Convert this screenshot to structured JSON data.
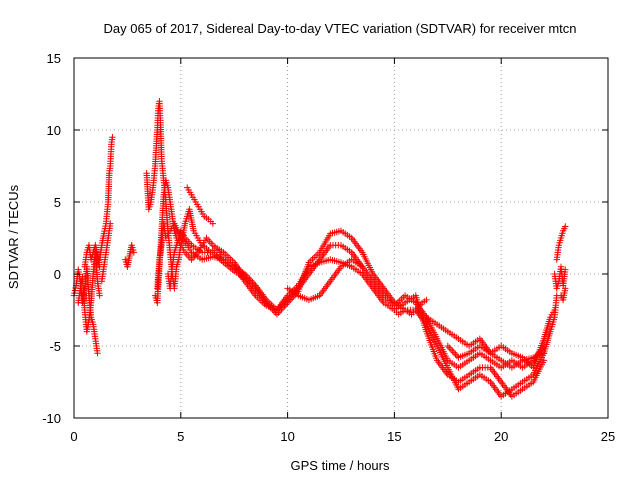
{
  "chart_data": {
    "type": "scatter",
    "title": "Day 065 of 2017, Sidereal Day-to-day VTEC variation (SDTVAR) for receiver mtcn",
    "xlabel": "GPS time / hours",
    "ylabel": "SDTVAR / TECUs",
    "xlim": [
      0,
      25
    ],
    "ylim": [
      -10,
      15
    ],
    "xticks": [
      0,
      5,
      10,
      15,
      20,
      25
    ],
    "yticks": [
      -10,
      -5,
      0,
      5,
      10,
      15
    ],
    "grid": true,
    "marker": "plus",
    "series": [
      {
        "name": "SDTVAR",
        "color": "#ff0000",
        "tracks": [
          [
            [
              0.0,
              -1.5
            ],
            [
              0.1,
              -0.8
            ],
            [
              0.2,
              0.3
            ],
            [
              0.3,
              -0.5
            ],
            [
              0.4,
              -2.0
            ],
            [
              0.5,
              -1.0
            ],
            [
              0.6,
              0.5
            ],
            [
              0.7,
              -1.5
            ],
            [
              0.8,
              -3.0
            ],
            [
              0.9,
              -3.5
            ],
            [
              1.0,
              -4.5
            ],
            [
              1.1,
              -5.5
            ]
          ],
          [
            [
              0.2,
              -2.0
            ],
            [
              0.3,
              -1.0
            ],
            [
              0.4,
              -0.2
            ],
            [
              0.5,
              -2.5
            ],
            [
              0.6,
              -4.0
            ],
            [
              0.7,
              -3.2
            ],
            [
              0.8,
              -2.0
            ],
            [
              0.9,
              0.0
            ],
            [
              1.0,
              1.5
            ],
            [
              1.1,
              -0.5
            ],
            [
              1.2,
              -1.5
            ]
          ],
          [
            [
              0.5,
              0.5
            ],
            [
              0.6,
              1.5
            ],
            [
              0.7,
              2.0
            ],
            [
              0.8,
              1.0
            ],
            [
              1.0,
              2.0
            ],
            [
              1.2,
              0.5
            ]
          ],
          [
            [
              1.2,
              1.0
            ],
            [
              1.3,
              2.0
            ],
            [
              1.4,
              2.8
            ],
            [
              1.5,
              3.5
            ],
            [
              1.6,
              5.0
            ],
            [
              1.65,
              7.0
            ],
            [
              1.7,
              7.5
            ],
            [
              1.75,
              9.0
            ],
            [
              1.8,
              9.5
            ]
          ],
          [
            [
              1.3,
              -0.5
            ],
            [
              1.4,
              0.5
            ],
            [
              1.5,
              1.5
            ],
            [
              1.6,
              2.5
            ],
            [
              1.7,
              3.5
            ]
          ],
          [
            [
              2.4,
              1.0
            ],
            [
              2.5,
              0.5
            ],
            [
              2.7,
              2.0
            ],
            [
              2.8,
              1.5
            ]
          ],
          [
            [
              3.4,
              7.0
            ],
            [
              3.5,
              4.5
            ],
            [
              3.6,
              5.0
            ],
            [
              3.7,
              6.0
            ],
            [
              3.8,
              7.5
            ],
            [
              3.9,
              10.0
            ],
            [
              3.95,
              11.5
            ],
            [
              4.0,
              12.0
            ],
            [
              4.05,
              10.5
            ],
            [
              4.1,
              8.0
            ],
            [
              4.2,
              6.5
            ],
            [
              4.3,
              5.0
            ],
            [
              4.4,
              3.0
            ],
            [
              4.5,
              1.5
            ],
            [
              4.6,
              0.0
            ],
            [
              4.7,
              -1.0
            ],
            [
              4.8,
              0.5
            ],
            [
              4.9,
              1.0
            ],
            [
              5.0,
              2.0
            ],
            [
              5.2,
              3.5
            ],
            [
              5.4,
              4.5
            ],
            [
              5.6,
              3.0
            ],
            [
              5.8,
              2.5
            ],
            [
              6.0,
              2.0
            ],
            [
              6.2,
              1.8
            ],
            [
              6.4,
              1.5
            ],
            [
              6.6,
              1.8
            ],
            [
              6.8,
              1.5
            ],
            [
              7.0,
              1.0
            ],
            [
              7.2,
              0.8
            ],
            [
              7.5,
              0.5
            ],
            [
              8.0,
              0.0
            ],
            [
              8.5,
              -0.8
            ],
            [
              9.0,
              -1.8
            ],
            [
              9.5,
              -2.5
            ],
            [
              10.0,
              -1.8
            ],
            [
              10.5,
              -1.0
            ],
            [
              11.0,
              0.0
            ],
            [
              11.5,
              1.0
            ],
            [
              12.0,
              2.0
            ],
            [
              12.5,
              2.0
            ],
            [
              13.0,
              1.5
            ],
            [
              13.5,
              0.5
            ],
            [
              14.0,
              -0.5
            ],
            [
              14.5,
              -1.5
            ],
            [
              15.0,
              -2.2
            ],
            [
              15.5,
              -1.5
            ],
            [
              16.0,
              -2.0
            ],
            [
              16.5,
              -3.0
            ],
            [
              17.0,
              -4.5
            ],
            [
              17.5,
              -6.0
            ],
            [
              18.0,
              -6.5
            ],
            [
              18.5,
              -6.0
            ],
            [
              19.0,
              -5.5
            ],
            [
              19.5,
              -6.0
            ],
            [
              20.0,
              -6.5
            ],
            [
              20.5,
              -6.0
            ],
            [
              21.0,
              -6.5
            ],
            [
              21.5,
              -6.0
            ],
            [
              22.0,
              -5.0
            ]
          ],
          [
            [
              3.8,
              -1.5
            ],
            [
              3.9,
              -2.0
            ],
            [
              4.0,
              0.5
            ],
            [
              4.1,
              3.0
            ],
            [
              4.2,
              5.5
            ],
            [
              4.3,
              6.5
            ],
            [
              4.4,
              6.0
            ],
            [
              4.5,
              5.0
            ],
            [
              4.6,
              4.0
            ],
            [
              4.7,
              3.0
            ],
            [
              4.8,
              2.5
            ],
            [
              5.0,
              2.0
            ],
            [
              5.2,
              1.5
            ],
            [
              5.5,
              1.0
            ],
            [
              5.8,
              1.5
            ],
            [
              6.0,
              2.0
            ],
            [
              6.2,
              2.5
            ],
            [
              6.5,
              2.0
            ],
            [
              7.0,
              1.5
            ],
            [
              7.5,
              0.8
            ],
            [
              8.0,
              -0.2
            ],
            [
              8.5,
              -1.0
            ],
            [
              9.0,
              -2.0
            ],
            [
              9.5,
              -2.8
            ],
            [
              10.0,
              -2.0
            ],
            [
              10.5,
              -1.2
            ],
            [
              11.0,
              0.8
            ],
            [
              11.5,
              1.5
            ],
            [
              12.0,
              2.8
            ],
            [
              12.5,
              3.0
            ],
            [
              13.0,
              2.5
            ],
            [
              13.5,
              1.5
            ],
            [
              14.0,
              0.0
            ],
            [
              14.5,
              -1.0
            ],
            [
              15.0,
              -2.0
            ],
            [
              15.5,
              -2.5
            ],
            [
              16.0,
              -2.5
            ],
            [
              16.5,
              -3.5
            ],
            [
              17.0,
              -5.0
            ],
            [
              17.5,
              -6.5
            ],
            [
              18.0,
              -8.0
            ],
            [
              18.5,
              -7.5
            ],
            [
              19.0,
              -7.0
            ],
            [
              19.5,
              -7.5
            ],
            [
              20.0,
              -8.5
            ],
            [
              20.5,
              -8.0
            ],
            [
              21.0,
              -7.5
            ],
            [
              21.5,
              -7.0
            ],
            [
              22.0,
              -5.5
            ]
          ],
          [
            [
              3.9,
              -1.0
            ],
            [
              4.0,
              1.0
            ],
            [
              4.1,
              2.0
            ],
            [
              4.2,
              3.5
            ],
            [
              4.3,
              2.5
            ],
            [
              4.5,
              3.0
            ],
            [
              4.7,
              3.5
            ],
            [
              5.0,
              2.5
            ],
            [
              5.3,
              2.0
            ],
            [
              5.5,
              1.5
            ],
            [
              6.0,
              1.0
            ],
            [
              6.5,
              1.2
            ],
            [
              7.0,
              1.0
            ],
            [
              7.5,
              0.5
            ],
            [
              8.0,
              -0.5
            ],
            [
              8.5,
              -1.5
            ],
            [
              9.0,
              -2.2
            ],
            [
              9.5,
              -2.5
            ],
            [
              10.0,
              -1.5
            ],
            [
              10.5,
              -0.8
            ],
            [
              11.0,
              0.5
            ],
            [
              11.5,
              0.8
            ],
            [
              12.0,
              1.0
            ],
            [
              12.5,
              0.8
            ],
            [
              13.0,
              0.5
            ],
            [
              13.5,
              0.0
            ],
            [
              14.0,
              -1.0
            ],
            [
              14.5,
              -2.0
            ],
            [
              15.0,
              -2.5
            ],
            [
              15.5,
              -2.0
            ],
            [
              16.0,
              -1.5
            ],
            [
              16.5,
              -4.0
            ],
            [
              17.0,
              -6.0
            ],
            [
              17.5,
              -7.0
            ],
            [
              18.0,
              -7.5
            ],
            [
              18.5,
              -7.0
            ],
            [
              19.0,
              -6.5
            ],
            [
              19.5,
              -6.5
            ],
            [
              20.0,
              -7.5
            ],
            [
              20.5,
              -8.5
            ],
            [
              21.0,
              -8.0
            ],
            [
              21.5,
              -7.5
            ],
            [
              22.0,
              -6.0
            ]
          ],
          [
            [
              4.4,
              0.0
            ],
            [
              4.5,
              -1.0
            ],
            [
              4.6,
              0.5
            ],
            [
              4.7,
              1.5
            ],
            [
              4.8,
              2.0
            ],
            [
              5.0,
              3.0
            ],
            [
              5.2,
              2.5
            ],
            [
              5.5,
              2.0
            ],
            [
              6.0,
              1.5
            ],
            [
              6.5,
              1.5
            ],
            [
              7.0,
              0.8
            ],
            [
              7.5,
              0.2
            ],
            [
              8.0,
              -0.3
            ]
          ],
          [
            [
              5.3,
              6.0
            ],
            [
              5.5,
              5.5
            ],
            [
              5.7,
              5.0
            ],
            [
              5.9,
              4.5
            ],
            [
              6.1,
              4.0
            ],
            [
              6.3,
              3.8
            ],
            [
              6.5,
              3.5
            ]
          ],
          [
            [
              10.0,
              -1.0
            ],
            [
              10.5,
              -1.5
            ],
            [
              11.0,
              -1.8
            ],
            [
              11.5,
              -1.5
            ],
            [
              12.0,
              -0.5
            ],
            [
              12.5,
              0.5
            ],
            [
              13.0,
              1.0
            ],
            [
              13.5,
              0.5
            ]
          ],
          [
            [
              15.0,
              -2.5
            ],
            [
              15.2,
              -2.8
            ],
            [
              15.5,
              -2.5
            ],
            [
              15.8,
              -2.8
            ],
            [
              16.0,
              -2.5
            ],
            [
              16.3,
              -2.0
            ],
            [
              16.5,
              -1.8
            ]
          ],
          [
            [
              16.5,
              -3.0
            ],
            [
              17.0,
              -3.5
            ],
            [
              17.5,
              -4.0
            ],
            [
              18.0,
              -4.5
            ],
            [
              18.5,
              -5.0
            ],
            [
              19.0,
              -4.5
            ],
            [
              19.5,
              -5.5
            ],
            [
              20.0,
              -6.0
            ],
            [
              20.5,
              -6.5
            ],
            [
              21.0,
              -6.0
            ],
            [
              21.5,
              -5.8
            ],
            [
              22.0,
              -5.5
            ]
          ],
          [
            [
              17.5,
              -5.0
            ],
            [
              18.0,
              -5.8
            ],
            [
              18.5,
              -5.5
            ],
            [
              19.0,
              -5.0
            ],
            [
              19.5,
              -5.5
            ],
            [
              20.0,
              -5.0
            ],
            [
              20.5,
              -5.5
            ],
            [
              21.0,
              -5.8
            ],
            [
              21.5,
              -6.5
            ],
            [
              22.0,
              -4.5
            ],
            [
              22.3,
              -3.0
            ],
            [
              22.5,
              -2.5
            ]
          ],
          [
            [
              22.0,
              -5.5
            ],
            [
              22.3,
              -4.0
            ],
            [
              22.5,
              -3.0
            ],
            [
              22.6,
              -1.5
            ]
          ],
          [
            [
              22.5,
              0.0
            ],
            [
              22.6,
              -1.0
            ],
            [
              22.7,
              -0.5
            ],
            [
              22.8,
              0.5
            ],
            [
              22.9,
              -0.8
            ],
            [
              23.0,
              0.3
            ]
          ],
          [
            [
              22.6,
              1.0
            ],
            [
              22.7,
              2.0
            ],
            [
              22.8,
              2.5
            ],
            [
              22.9,
              3.0
            ],
            [
              23.0,
              3.3
            ]
          ],
          [
            [
              22.8,
              -1.5
            ],
            [
              22.9,
              -1.8
            ],
            [
              23.0,
              -1.0
            ]
          ]
        ]
      }
    ]
  }
}
